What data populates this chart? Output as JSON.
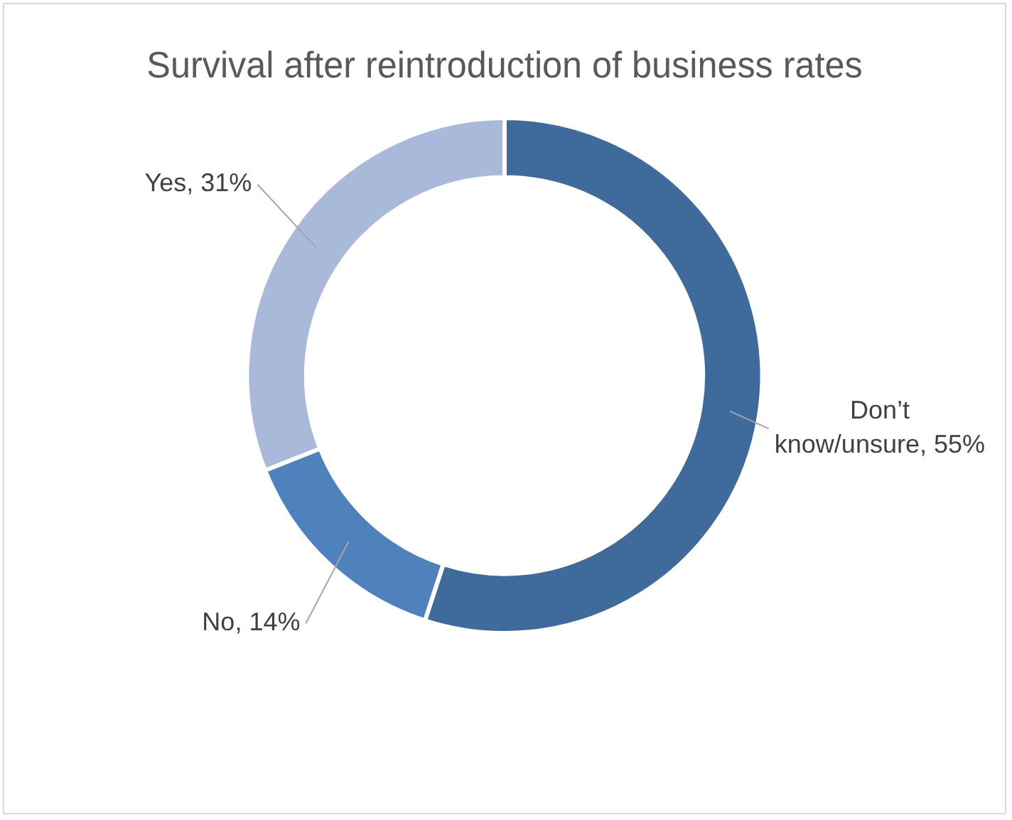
{
  "chart_data": {
    "type": "donut",
    "title": "Survival after reintroduction of business rates",
    "categories": [
      "Don’t know/unsure",
      "No",
      "Yes"
    ],
    "values": [
      55,
      14,
      31
    ],
    "value_labels": [
      "55%",
      "14%",
      "31%"
    ],
    "colors": [
      "#3f6a9c",
      "#4f81bd",
      "#a9b9d9"
    ],
    "legend": false
  }
}
